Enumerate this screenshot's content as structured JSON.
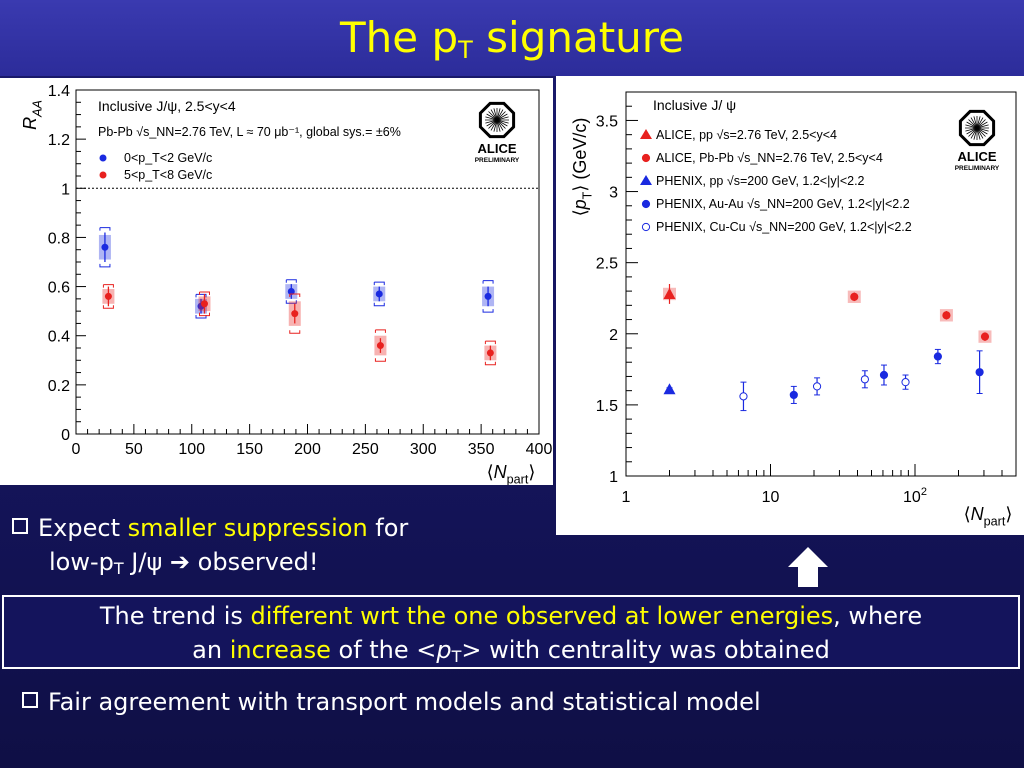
{
  "slide": {
    "title_main": "The p",
    "title_sub": "T",
    "title_tail": " signature"
  },
  "bullet1": {
    "pre": "Expect ",
    "highlight": "smaller suppression",
    "post": " for",
    "line2_pre": "low-p",
    "line2_sub": "T",
    "line2_mid": " J/ψ ",
    "line2_arrow": "➔",
    "line2_post": " observed!"
  },
  "callout": {
    "p1": "The trend is ",
    "h1": "different wrt the one observed at lower energies",
    "p2": ", where",
    "p3": "an ",
    "h2": "increase",
    "p4": " of the <",
    "p4_italic": "p",
    "p4_sub": "T",
    "p5": "> with centrality was obtained"
  },
  "bullet2": {
    "text": "Fair agreement with transport models and statistical model"
  },
  "colors": {
    "accent": "#ffff00",
    "alice_red": "#e8211f",
    "phenix_blue": "#1a2ae0"
  },
  "chart_data": [
    {
      "type": "scatter",
      "ylabel": "R_AA",
      "xlabel": "⟨N_part⟩",
      "xlim": [
        0,
        400
      ],
      "ylim": [
        0,
        1.4
      ],
      "x_ticks": [
        "0",
        "50",
        "100",
        "150",
        "200",
        "250",
        "300",
        "350",
        "400"
      ],
      "y_ticks": [
        "0",
        "0.2",
        "0.4",
        "0.6",
        "0.8",
        "1",
        "1.2",
        "1.4"
      ],
      "reference_line": 1,
      "legend_title": "Inclusive J/ψ, 2.5<y<4",
      "legend_subtitle": "Pb-Pb √s_NN=2.76 TeV, L ≈ 70 μb⁻¹, global sys.= ±6%",
      "logo_text": "ALICE",
      "logo_sub": "PRELIMINARY",
      "series": [
        {
          "name": "0<p_T<2 GeV/c",
          "color": "#1a2ae0",
          "x": [
            25,
            108,
            186,
            262,
            356
          ],
          "y": [
            0.76,
            0.52,
            0.58,
            0.57,
            0.56
          ],
          "err": [
            0.06,
            0.03,
            0.03,
            0.03,
            0.04
          ],
          "sys": [
            0.05,
            0.03,
            0.03,
            0.03,
            0.04
          ]
        },
        {
          "name": "5<p_T<8 GeV/c",
          "color": "#e8211f",
          "x": [
            28,
            111,
            189,
            263,
            358
          ],
          "y": [
            0.56,
            0.53,
            0.49,
            0.36,
            0.33
          ],
          "err": [
            0.04,
            0.04,
            0.04,
            0.03,
            0.03
          ],
          "sys": [
            0.03,
            0.03,
            0.05,
            0.04,
            0.03
          ]
        }
      ]
    },
    {
      "type": "scatter",
      "ylabel": "⟨p_T⟩ (GeV/c)",
      "xlabel": "⟨N_part⟩",
      "x_scale": "log",
      "xlim": [
        1,
        500
      ],
      "ylim": [
        1,
        3.7
      ],
      "x_ticks": [
        "1",
        "10",
        "10²"
      ],
      "y_ticks": [
        "1",
        "1.5",
        "2",
        "2.5",
        "3",
        "3.5"
      ],
      "legend_title": "Inclusive J/ ψ",
      "logo_text": "ALICE",
      "logo_sub": "PRELIMINARY",
      "series": [
        {
          "name": "ALICE, pp √s=2.76 TeV, 2.5<y<4",
          "color": "#e8211f",
          "marker": "triangle",
          "filled": true,
          "x": [
            2
          ],
          "y": [
            2.28
          ],
          "err": [
            0.07
          ],
          "sys": [
            0.04
          ]
        },
        {
          "name": "ALICE, Pb-Pb √s_NN=2.76 TeV, 2.5<y<4",
          "color": "#e8211f",
          "marker": "circle",
          "filled": true,
          "x": [
            38,
            165,
            305
          ],
          "y": [
            2.26,
            2.13,
            1.98
          ],
          "err": [
            0.03,
            0.03,
            0.03
          ],
          "sys": [
            0.04,
            0.04,
            0.04
          ]
        },
        {
          "name": "PHENIX, pp √s=200 GeV, 1.2<|y|<2.2",
          "color": "#1a2ae0",
          "marker": "triangle",
          "filled": true,
          "x": [
            2
          ],
          "y": [
            1.61
          ],
          "err": [
            0.01
          ]
        },
        {
          "name": "PHENIX, Au-Au √s_NN=200 GeV, 1.2<|y|<2.2",
          "color": "#1a2ae0",
          "marker": "circle",
          "filled": true,
          "x": [
            14.5,
            61,
            144,
            280
          ],
          "y": [
            1.57,
            1.71,
            1.84,
            1.73
          ],
          "err": [
            0.06,
            0.07,
            0.05,
            0.15
          ]
        },
        {
          "name": "PHENIX, Cu-Cu √s_NN=200 GeV, 1.2<|y|<2.2",
          "color": "#1a2ae0",
          "marker": "circle",
          "filled": false,
          "x": [
            6.5,
            21,
            45,
            86
          ],
          "y": [
            1.56,
            1.63,
            1.68,
            1.66
          ],
          "err": [
            0.1,
            0.06,
            0.06,
            0.05
          ]
        }
      ]
    }
  ]
}
